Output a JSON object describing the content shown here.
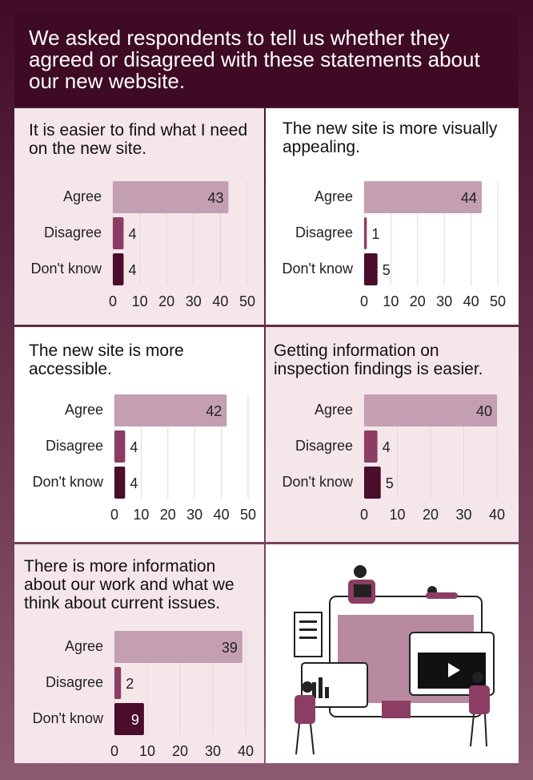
{
  "title": "We asked respondents to tell us whether they agreed or disagreed with these statements about our new website.",
  "chart_data": [
    {
      "type": "bar",
      "orientation": "horizontal",
      "title": "It is easier to find what I need on the new site.",
      "categories": [
        "Agree",
        "Disagree",
        "Don't know"
      ],
      "values": [
        43,
        4,
        4
      ],
      "colors": [
        "#c49fb1",
        "#8c3d64",
        "#4a0d2b"
      ],
      "xlim": [
        0,
        50
      ],
      "xticks": [
        0,
        10,
        20,
        30,
        40,
        50
      ],
      "grid": true
    },
    {
      "type": "bar",
      "orientation": "horizontal",
      "title": "The new site is more visually appealing.",
      "categories": [
        "Agree",
        "Disagree",
        "Don't know"
      ],
      "values": [
        44,
        1,
        5
      ],
      "colors": [
        "#c49fb1",
        "#8c3d64",
        "#4a0d2b"
      ],
      "xlim": [
        0,
        50
      ],
      "xticks": [
        0,
        10,
        20,
        30,
        40,
        50
      ],
      "grid": true
    },
    {
      "type": "bar",
      "orientation": "horizontal",
      "title": "The new site is more accessible.",
      "categories": [
        "Agree",
        "Disagree",
        "Don't know"
      ],
      "values": [
        42,
        4,
        4
      ],
      "colors": [
        "#c49fb1",
        "#8c3d64",
        "#4a0d2b"
      ],
      "xlim": [
        0,
        50
      ],
      "xticks": [
        0,
        10,
        20,
        30,
        40,
        50
      ],
      "grid": true
    },
    {
      "type": "bar",
      "orientation": "horizontal",
      "title": "Getting information on inspection findings is easier.",
      "categories": [
        "Agree",
        "Disagree",
        "Don't know"
      ],
      "values": [
        40,
        4,
        5
      ],
      "colors": [
        "#c49fb1",
        "#8c3d64",
        "#4a0d2b"
      ],
      "xlim": [
        0,
        40
      ],
      "xticks": [
        0,
        10,
        20,
        30,
        40
      ],
      "grid": true
    },
    {
      "type": "bar",
      "orientation": "horizontal",
      "title": "There is more information about our work and what we think about current issues.",
      "categories": [
        "Agree",
        "Disagree",
        "Don't know"
      ],
      "values": [
        39,
        2,
        9
      ],
      "colors": [
        "#c49fb1",
        "#8c3d64",
        "#4a0d2b"
      ],
      "xlim": [
        0,
        40
      ],
      "xticks": [
        0,
        10,
        20,
        30,
        40
      ],
      "grid": true
    }
  ]
}
